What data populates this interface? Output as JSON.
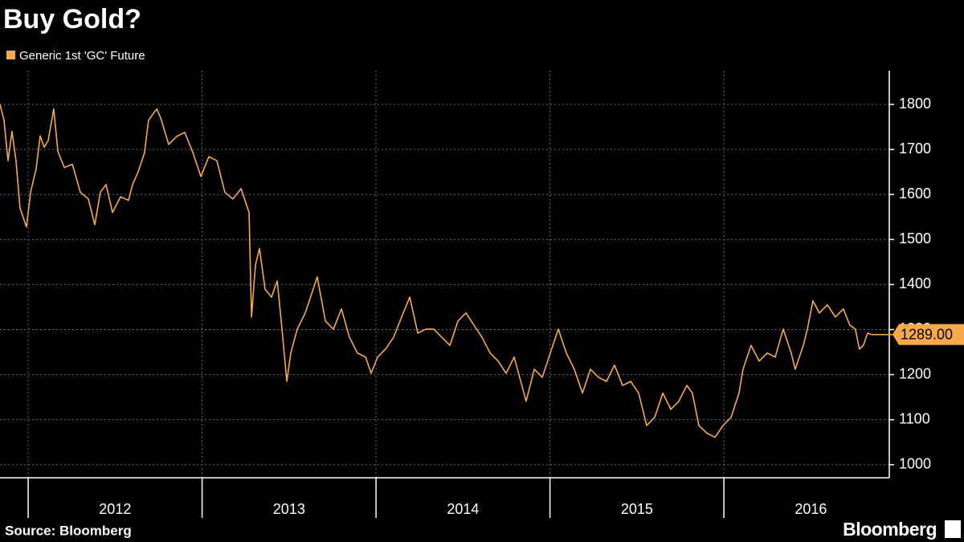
{
  "chart_data": {
    "type": "line",
    "title": "Buy Gold?",
    "source": "Source: Bloomberg",
    "brand": "Bloomberg",
    "legend": "top-left",
    "grid": true,
    "xlim": [
      2011.838,
      2016.951
    ],
    "xticks": [
      {
        "value": 2012,
        "label": "2012"
      },
      {
        "value": 2013,
        "label": "2013"
      },
      {
        "value": 2014,
        "label": "2014"
      },
      {
        "value": 2015,
        "label": "2015"
      },
      {
        "value": 2016,
        "label": "2016"
      }
    ],
    "ylim": [
      971,
      1875
    ],
    "yticks": [
      1000,
      1100,
      1200,
      1300,
      1400,
      1500,
      1600,
      1700,
      1800
    ],
    "x": [
      2011.838,
      2011.861,
      2011.884,
      2011.907,
      2011.93,
      2011.953,
      2011.99,
      2012.014,
      2012.046,
      2012.069,
      2012.092,
      2012.115,
      2012.147,
      2012.171,
      2012.208,
      2012.254,
      2012.3,
      2012.346,
      2012.383,
      2012.415,
      2012.448,
      2012.485,
      2012.531,
      2012.577,
      2012.6,
      2012.632,
      2012.669,
      2012.692,
      2012.739,
      2012.762,
      2012.808,
      2012.854,
      2012.9,
      2012.947,
      2012.993,
      2013.039,
      2013.085,
      2013.131,
      2013.177,
      2013.224,
      2013.27,
      2013.284,
      2013.307,
      2013.33,
      2013.362,
      2013.399,
      2013.432,
      2013.455,
      2013.487,
      2013.51,
      2013.547,
      2013.593,
      2013.662,
      2013.709,
      2013.755,
      2013.801,
      2013.847,
      2013.893,
      2013.94,
      2013.972,
      2014.009,
      2014.055,
      2014.101,
      2014.147,
      2014.194,
      2014.24,
      2014.286,
      2014.332,
      2014.378,
      2014.425,
      2014.471,
      2014.517,
      2014.563,
      2014.609,
      2014.656,
      2014.702,
      2014.748,
      2014.794,
      2014.863,
      2014.91,
      2014.956,
      2015.002,
      2015.048,
      2015.094,
      2015.14,
      2015.187,
      2015.233,
      2015.279,
      2015.325,
      2015.371,
      2015.418,
      2015.464,
      2015.51,
      2015.556,
      2015.602,
      2015.649,
      2015.695,
      2015.741,
      2015.787,
      2015.819,
      2015.856,
      2015.903,
      2015.949,
      2015.995,
      2016.041,
      2016.087,
      2016.11,
      2016.156,
      2016.203,
      2016.249,
      2016.295,
      2016.341,
      2016.387,
      2016.41,
      2016.457,
      2016.48,
      2016.512,
      2016.549,
      2016.595,
      2016.641,
      2016.687,
      2016.724,
      2016.756,
      2016.779,
      2016.802,
      2016.826,
      2016.849
    ],
    "series": [
      {
        "name": "Generic 1st 'GC' Future",
        "color": "#f7a94b",
        "values": [
          1800,
          1765,
          1675,
          1740,
          1675,
          1570,
          1528,
          1605,
          1658,
          1730,
          1705,
          1720,
          1790,
          1695,
          1660,
          1667,
          1605,
          1590,
          1533,
          1605,
          1622,
          1560,
          1595,
          1587,
          1622,
          1650,
          1693,
          1765,
          1790,
          1770,
          1711,
          1729,
          1738,
          1693,
          1640,
          1684,
          1675,
          1605,
          1590,
          1613,
          1560,
          1328,
          1444,
          1480,
          1390,
          1372,
          1408,
          1319,
          1185,
          1248,
          1301,
          1337,
          1417,
          1319,
          1301,
          1346,
          1283,
          1248,
          1239,
          1203,
          1239,
          1257,
          1283,
          1328,
          1372,
          1292,
          1301,
          1301,
          1283,
          1265,
          1319,
          1337,
          1310,
          1283,
          1248,
          1230,
          1203,
          1239,
          1141,
          1212,
          1194,
          1248,
          1301,
          1248,
          1212,
          1159,
          1212,
          1194,
          1185,
          1221,
          1176,
          1185,
          1159,
          1087,
          1105,
          1159,
          1123,
          1141,
          1176,
          1159,
          1087,
          1070,
          1061,
          1087,
          1105,
          1159,
          1212,
          1265,
          1230,
          1248,
          1239,
          1301,
          1248,
          1212,
          1265,
          1301,
          1364,
          1337,
          1355,
          1328,
          1346,
          1310,
          1301,
          1257,
          1265,
          1292,
          1289
        ],
        "value_labels": [
          null,
          null,
          null,
          null,
          null,
          null,
          null,
          null,
          null,
          null,
          null,
          null,
          null,
          null,
          null,
          null,
          null,
          null,
          null,
          null,
          null,
          null,
          null,
          null,
          null,
          null,
          null,
          null,
          null,
          null,
          null,
          null,
          null,
          null,
          null,
          null,
          null,
          null,
          null,
          null,
          null,
          null,
          null,
          null,
          null,
          null,
          null,
          null,
          null,
          null,
          null,
          null,
          null,
          null,
          null,
          null,
          null,
          null,
          null,
          null,
          null,
          null,
          null,
          null,
          null,
          null,
          null,
          null,
          null,
          null,
          null,
          null,
          null,
          null,
          null,
          null,
          null,
          null,
          null,
          null,
          null,
          null,
          null,
          null,
          null,
          null,
          null,
          null,
          null,
          null,
          null,
          null,
          null,
          null,
          null,
          null,
          null,
          null,
          null,
          null,
          null,
          null,
          null,
          null,
          null,
          null,
          null,
          null,
          null,
          null,
          null,
          null,
          null,
          null,
          null,
          null,
          null,
          null,
          null,
          null,
          null,
          null,
          null,
          null,
          null,
          null,
          "1289.00"
        ]
      }
    ]
  }
}
